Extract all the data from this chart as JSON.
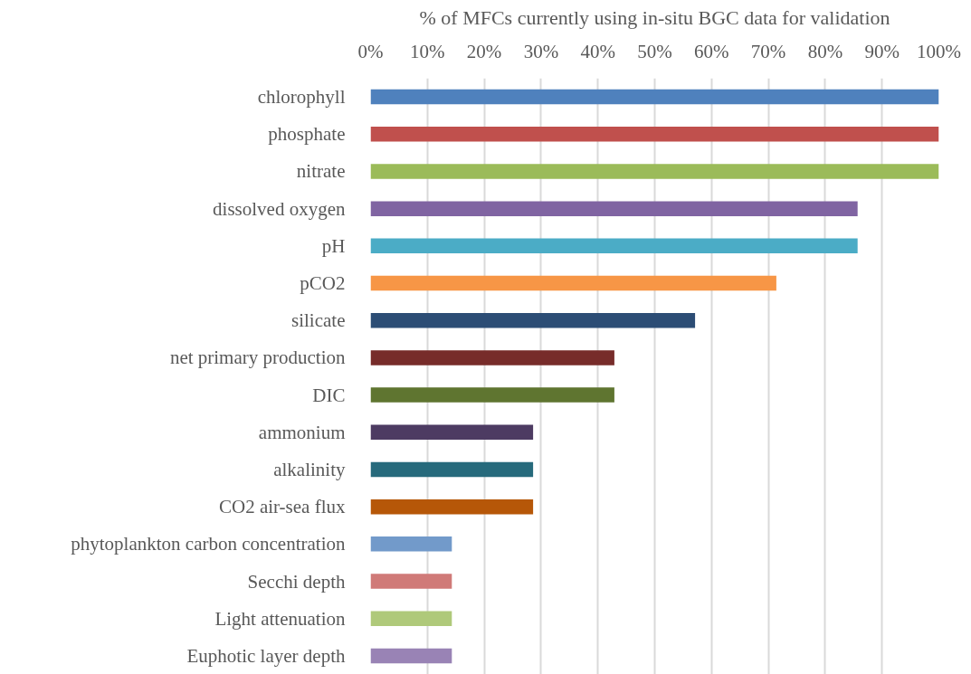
{
  "chart_data": {
    "type": "bar",
    "orientation": "horizontal",
    "xlabel": "% of MFCs currently using in-situ BGC data for validation",
    "categories": [
      "chlorophyll",
      "phosphate",
      "nitrate",
      "dissolved oxygen",
      "pH",
      "pCO2",
      "silicate",
      "net primary production",
      "DIC",
      "ammonium",
      "alkalinity",
      "CO2 air-sea flux",
      "phytoplankton carbon concentration",
      "Secchi depth",
      "Light attenuation",
      "Euphotic layer depth"
    ],
    "values": [
      100,
      100,
      100,
      85.7,
      85.7,
      71.4,
      57.1,
      42.9,
      42.9,
      28.6,
      28.6,
      28.6,
      14.3,
      14.3,
      14.3,
      14.3
    ],
    "colors": [
      "#4f81bd",
      "#c0504d",
      "#9bbb59",
      "#8064a2",
      "#4bacc6",
      "#f79646",
      "#2c4d75",
      "#772c2a",
      "#5f7530",
      "#4d3b62",
      "#276a7c",
      "#b65708",
      "#729aca",
      "#d07a78",
      "#afc97a",
      "#9983b5"
    ],
    "xlim": [
      0,
      100
    ],
    "xticks": [
      {
        "value": 0,
        "label": "0%"
      },
      {
        "value": 10,
        "label": "10%"
      },
      {
        "value": 20,
        "label": "20%"
      },
      {
        "value": 30,
        "label": "30%"
      },
      {
        "value": 40,
        "label": "40%"
      },
      {
        "value": 50,
        "label": "50%"
      },
      {
        "value": 60,
        "label": "60%"
      },
      {
        "value": 70,
        "label": "70%"
      },
      {
        "value": 80,
        "label": "80%"
      },
      {
        "value": 90,
        "label": "90%"
      },
      {
        "value": 100,
        "label": "100%"
      }
    ],
    "grid": "x"
  }
}
